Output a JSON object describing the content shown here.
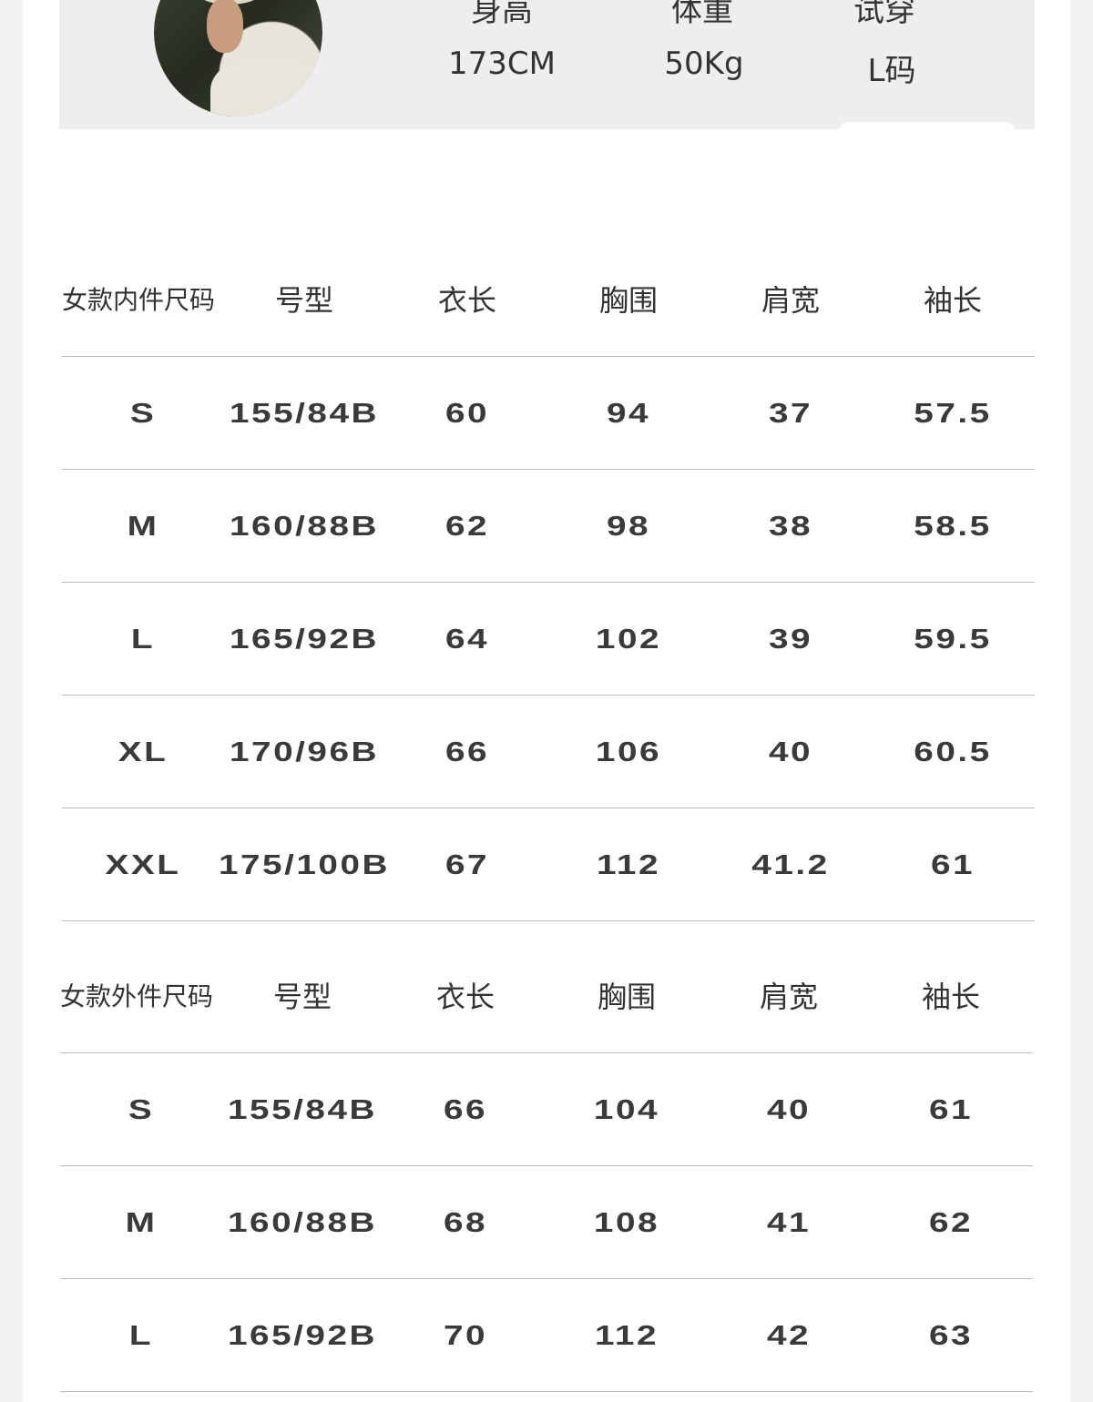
{
  "model": {
    "labels": [
      "身高",
      "体重",
      "试穿"
    ],
    "values": [
      "173CM",
      "50Kg",
      "L码"
    ]
  },
  "tables": [
    {
      "headers": [
        "女款内件尺码",
        "号型",
        "衣长",
        "胸围",
        "肩宽",
        "袖长"
      ],
      "rows": [
        [
          "S",
          "155/84B",
          "60",
          "94",
          "37",
          "57.5"
        ],
        [
          "M",
          "160/88B",
          "62",
          "98",
          "38",
          "58.5"
        ],
        [
          "L",
          "165/92B",
          "64",
          "102",
          "39",
          "59.5"
        ],
        [
          "XL",
          "170/96B",
          "66",
          "106",
          "40",
          "60.5"
        ],
        [
          "XXL",
          "175/100B",
          "67",
          "112",
          "41.2",
          "61"
        ]
      ]
    },
    {
      "headers": [
        "女款外件尺码",
        "号型",
        "衣长",
        "胸围",
        "肩宽",
        "袖长"
      ],
      "rows": [
        [
          "S",
          "155/84B",
          "66",
          "104",
          "40",
          "61"
        ],
        [
          "M",
          "160/88B",
          "68",
          "108",
          "41",
          "62"
        ],
        [
          "L",
          "165/92B",
          "70",
          "112",
          "42",
          "63"
        ]
      ]
    }
  ]
}
